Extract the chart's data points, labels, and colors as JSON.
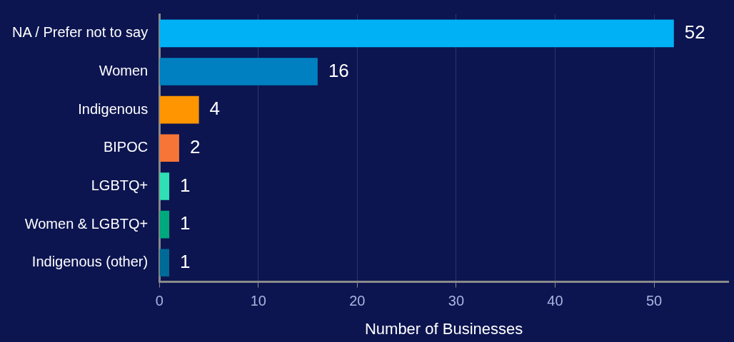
{
  "chart_data": {
    "type": "bar",
    "orientation": "horizontal",
    "xlabel": "Number of Businesses",
    "categories": [
      "NA / Prefer not to say",
      "Women",
      "Indigenous",
      "BIPOC",
      "LGBTQ+",
      "Women & LGBTQ+",
      "Indigenous (other)"
    ],
    "values": [
      52,
      16,
      4,
      2,
      1,
      1,
      1
    ],
    "colors": [
      "#00b2f5",
      "#0080c0",
      "#ff9500",
      "#f77637",
      "#2ee0b4",
      "#00a87d",
      "#006a96"
    ],
    "xlim": [
      0,
      57.5
    ],
    "xticks": [
      0,
      10,
      20,
      30,
      40,
      50
    ],
    "grid": "x",
    "data_labels": true,
    "legend": false
  }
}
